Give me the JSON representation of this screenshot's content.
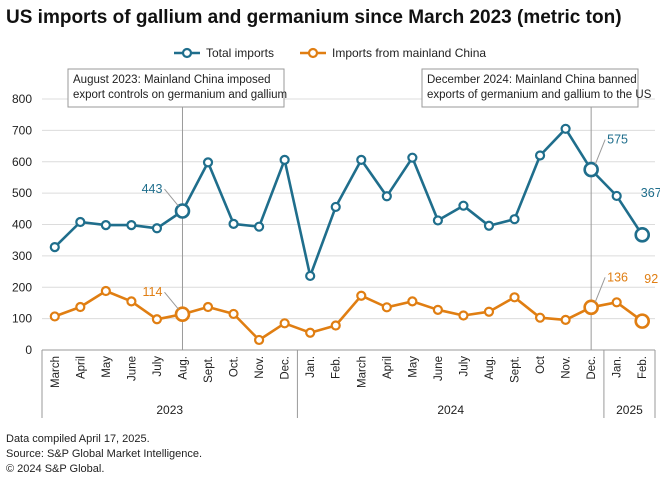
{
  "chart_data": {
    "type": "line",
    "title": "US imports of gallium and germanium since March 2023 (metric ton)",
    "xlabel": "",
    "ylabel": "",
    "ylim": [
      0,
      800
    ],
    "yticks": [
      0,
      100,
      200,
      300,
      400,
      500,
      600,
      700,
      800
    ],
    "grid": true,
    "legend_position": "top-center",
    "categories": [
      "March",
      "April",
      "May",
      "June",
      "July",
      "Aug.",
      "Sept.",
      "Oct.",
      "Nov.",
      "Dec.",
      "Jan.",
      "Feb.",
      "March",
      "April",
      "May",
      "June",
      "July",
      "Aug.",
      "Sept.",
      "Oct",
      "Nov.",
      "Dec.",
      "Jan.",
      "Feb."
    ],
    "year_groups": [
      {
        "label": "2023",
        "start": 0,
        "end": 9
      },
      {
        "label": "2024",
        "start": 10,
        "end": 21
      },
      {
        "label": "2025",
        "start": 22,
        "end": 23
      }
    ],
    "series": [
      {
        "name": "Total imports",
        "color": "#1f6e8c",
        "values": [
          328,
          408,
          398,
          398,
          388,
          443,
          598,
          402,
          393,
          606,
          236,
          456,
          606,
          490,
          613,
          413,
          460,
          396,
          417,
          620,
          705,
          575,
          491,
          367
        ]
      },
      {
        "name": "Imports from mainland China",
        "color": "#e07e12",
        "values": [
          107,
          137,
          188,
          155,
          98,
          114,
          137,
          115,
          32,
          85,
          55,
          78,
          173,
          136,
          155,
          128,
          110,
          122,
          168,
          103,
          96,
          136,
          152,
          92
        ]
      }
    ],
    "highlighted_points": [
      {
        "series": 0,
        "index": 5,
        "label": "443"
      },
      {
        "series": 0,
        "index": 21,
        "label": "575"
      },
      {
        "series": 0,
        "index": 23,
        "label": "367"
      },
      {
        "series": 1,
        "index": 5,
        "label": "114"
      },
      {
        "series": 1,
        "index": 21,
        "label": "136"
      },
      {
        "series": 1,
        "index": 23,
        "label": "92"
      }
    ],
    "annotations": [
      {
        "index": 5,
        "lines": [
          "August 2023: Mainland China imposed",
          "export controls on germanium and gallium"
        ]
      },
      {
        "index": 21,
        "lines": [
          "December 2024: Mainland China banned",
          "exports of germanium and gallium to the US"
        ]
      }
    ]
  },
  "footer": {
    "line1": "Data compiled April 17, 2025.",
    "line2": "Source: S&P Global Market Intelligence.",
    "line3": "© 2024 S&P Global."
  }
}
